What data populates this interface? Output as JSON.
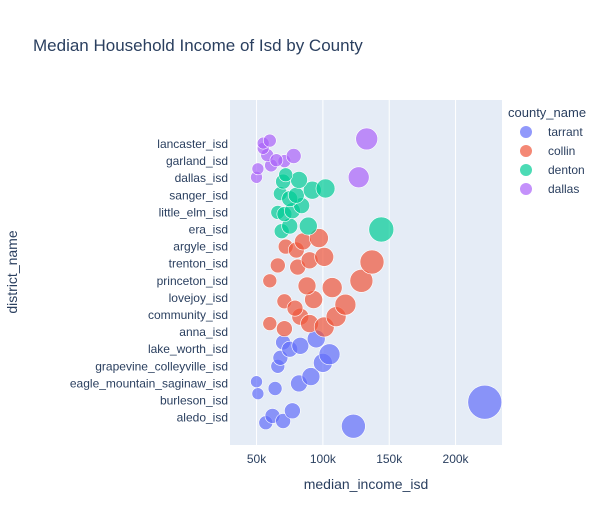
{
  "chart_data": {
    "type": "scatter",
    "title": "Median Household Income of Isd by County",
    "xlabel": "median_income_isd",
    "ylabel": "district_name",
    "xlim": [
      30000,
      235000
    ],
    "x_ticks": [
      {
        "value": 50000,
        "label": "50k"
      },
      {
        "value": 100000,
        "label": "100k"
      },
      {
        "value": 150000,
        "label": "150k"
      },
      {
        "value": 200000,
        "label": "200k"
      }
    ],
    "y_tick_labels": [
      "lancaster_isd",
      "garland_isd",
      "dallas_isd",
      "sanger_isd",
      "little_elm_isd",
      "era_isd",
      "argyle_isd",
      "trenton_isd",
      "princeton_isd",
      "lovejoy_isd",
      "community_isd",
      "anna_isd",
      "lake_worth_isd",
      "grapevine_colleyville_isd",
      "eagle_mountain_saginaw_isd",
      "burleson_isd",
      "aledo_isd"
    ],
    "legend": {
      "title": "county_name",
      "position": "right"
    },
    "series": [
      {
        "name": "tarrant",
        "color": "#636efa",
        "points": [
          {
            "x": 57000,
            "y": 16.3,
            "s": 0.7
          },
          {
            "x": 62000,
            "y": 15.9,
            "s": 0.75
          },
          {
            "x": 70000,
            "y": 16.2,
            "s": 0.75
          },
          {
            "x": 77000,
            "y": 15.6,
            "s": 0.8
          },
          {
            "x": 123000,
            "y": 16.5,
            "s": 1.2
          },
          {
            "x": 222000,
            "y": 15.1,
            "s": 1.7
          },
          {
            "x": 51000,
            "y": 14.6,
            "s": 0.6
          },
          {
            "x": 64000,
            "y": 14.3,
            "s": 0.7
          },
          {
            "x": 50000,
            "y": 13.9,
            "s": 0.6
          },
          {
            "x": 82000,
            "y": 14.0,
            "s": 0.85
          },
          {
            "x": 91000,
            "y": 13.6,
            "s": 0.9
          },
          {
            "x": 66000,
            "y": 13.0,
            "s": 0.7
          },
          {
            "x": 68000,
            "y": 12.5,
            "s": 0.75
          },
          {
            "x": 100000,
            "y": 12.8,
            "s": 0.95
          },
          {
            "x": 105000,
            "y": 12.3,
            "s": 1.05
          },
          {
            "x": 70000,
            "y": 11.6,
            "s": 0.75
          },
          {
            "x": 75000,
            "y": 12.0,
            "s": 0.8
          },
          {
            "x": 83000,
            "y": 11.8,
            "s": 0.85
          },
          {
            "x": 95000,
            "y": 11.4,
            "s": 0.9
          }
        ]
      },
      {
        "name": "collin",
        "color": "#ef553b",
        "points": [
          {
            "x": 60000,
            "y": 10.5,
            "s": 0.7
          },
          {
            "x": 71000,
            "y": 10.8,
            "s": 0.8
          },
          {
            "x": 83000,
            "y": 10.1,
            "s": 0.85
          },
          {
            "x": 90000,
            "y": 10.5,
            "s": 0.9
          },
          {
            "x": 101000,
            "y": 10.7,
            "s": 1.0
          },
          {
            "x": 110000,
            "y": 10.1,
            "s": 1.0
          },
          {
            "x": 71000,
            "y": 9.2,
            "s": 0.75
          },
          {
            "x": 79000,
            "y": 9.6,
            "s": 0.8
          },
          {
            "x": 93000,
            "y": 9.1,
            "s": 0.9
          },
          {
            "x": 117000,
            "y": 9.4,
            "s": 1.05
          },
          {
            "x": 60000,
            "y": 8.0,
            "s": 0.7
          },
          {
            "x": 88000,
            "y": 8.3,
            "s": 0.9
          },
          {
            "x": 107000,
            "y": 8.4,
            "s": 1.0
          },
          {
            "x": 129000,
            "y": 8.0,
            "s": 1.15
          },
          {
            "x": 66000,
            "y": 7.1,
            "s": 0.75
          },
          {
            "x": 81000,
            "y": 7.2,
            "s": 0.8
          },
          {
            "x": 90000,
            "y": 6.8,
            "s": 0.85
          },
          {
            "x": 101000,
            "y": 6.6,
            "s": 0.95
          },
          {
            "x": 137000,
            "y": 6.9,
            "s": 1.2
          },
          {
            "x": 72000,
            "y": 6.0,
            "s": 0.75
          },
          {
            "x": 80000,
            "y": 6.2,
            "s": 0.8
          },
          {
            "x": 85000,
            "y": 5.7,
            "s": 0.85
          },
          {
            "x": 97000,
            "y": 5.5,
            "s": 0.95
          }
        ]
      },
      {
        "name": "denton",
        "color": "#00cc96",
        "points": [
          {
            "x": 69000,
            "y": 5.1,
            "s": 0.75
          },
          {
            "x": 75000,
            "y": 4.8,
            "s": 0.8
          },
          {
            "x": 89000,
            "y": 4.8,
            "s": 0.9
          },
          {
            "x": 144000,
            "y": 5.0,
            "s": 1.25
          },
          {
            "x": 66000,
            "y": 4.0,
            "s": 0.7
          },
          {
            "x": 71000,
            "y": 4.1,
            "s": 0.75
          },
          {
            "x": 77000,
            "y": 3.9,
            "s": 0.8
          },
          {
            "x": 84000,
            "y": 3.6,
            "s": 0.8
          },
          {
            "x": 68000,
            "y": 2.9,
            "s": 0.7
          },
          {
            "x": 75000,
            "y": 3.2,
            "s": 0.8
          },
          {
            "x": 80000,
            "y": 3.0,
            "s": 0.8
          },
          {
            "x": 92000,
            "y": 2.7,
            "s": 0.9
          },
          {
            "x": 102000,
            "y": 2.6,
            "s": 0.95
          },
          {
            "x": 70000,
            "y": 2.2,
            "s": 0.75
          },
          {
            "x": 82000,
            "y": 2.1,
            "s": 0.85
          },
          {
            "x": 72000,
            "y": 1.8,
            "s": 0.7
          }
        ]
      },
      {
        "name": "dallas",
        "color": "#ab63fa",
        "points": [
          {
            "x": 50000,
            "y": 1.95,
            "s": 0.6
          },
          {
            "x": 51000,
            "y": 1.45,
            "s": 0.6
          },
          {
            "x": 61000,
            "y": 1.25,
            "s": 0.65
          },
          {
            "x": 71000,
            "y": 1.0,
            "s": 0.65
          },
          {
            "x": 127000,
            "y": 1.95,
            "s": 1.05
          },
          {
            "x": 58000,
            "y": 0.65,
            "s": 0.65
          },
          {
            "x": 65000,
            "y": 0.95,
            "s": 0.65
          },
          {
            "x": 78000,
            "y": 0.7,
            "s": 0.75
          },
          {
            "x": 55000,
            "y": 0.25,
            "s": 0.6
          },
          {
            "x": 55000,
            "y": -0.05,
            "s": 0.6
          },
          {
            "x": 60000,
            "y": -0.2,
            "s": 0.65
          },
          {
            "x": 133000,
            "y": -0.3,
            "s": 1.1
          }
        ]
      }
    ]
  }
}
